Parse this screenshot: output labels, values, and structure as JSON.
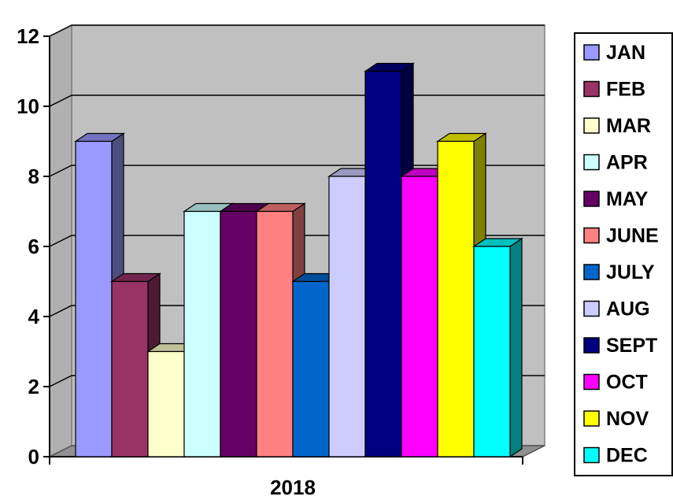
{
  "chart_data": {
    "type": "bar",
    "style": "3d-clustered-column",
    "categories": [
      "2018"
    ],
    "series": [
      {
        "name": "JAN",
        "values": [
          9
        ],
        "color": "#9999FF"
      },
      {
        "name": "FEB",
        "values": [
          5
        ],
        "color": "#993366"
      },
      {
        "name": "MAR",
        "values": [
          3
        ],
        "color": "#FFFFCC"
      },
      {
        "name": "APR",
        "values": [
          7
        ],
        "color": "#CCFFFF"
      },
      {
        "name": "MAY",
        "values": [
          7
        ],
        "color": "#660066"
      },
      {
        "name": "JUNE",
        "values": [
          7
        ],
        "color": "#FF8080"
      },
      {
        "name": "JULY",
        "values": [
          5
        ],
        "color": "#0066CC"
      },
      {
        "name": "AUG",
        "values": [
          8
        ],
        "color": "#CCCCFF"
      },
      {
        "name": "SEPT",
        "values": [
          11
        ],
        "color": "#000080"
      },
      {
        "name": "OCT",
        "values": [
          8
        ],
        "color": "#FF00FF"
      },
      {
        "name": "NOV",
        "values": [
          9
        ],
        "color": "#FFFF00"
      },
      {
        "name": "DEC",
        "values": [
          6
        ],
        "color": "#00FFFF"
      }
    ],
    "title": "",
    "xlabel": "",
    "ylabel": "",
    "ylim": [
      0,
      12
    ],
    "yticks": [
      "0",
      "2",
      "4",
      "6",
      "8",
      "10",
      "12"
    ],
    "grid": true,
    "legend": "right",
    "wall_color": "#C0C0C0"
  }
}
